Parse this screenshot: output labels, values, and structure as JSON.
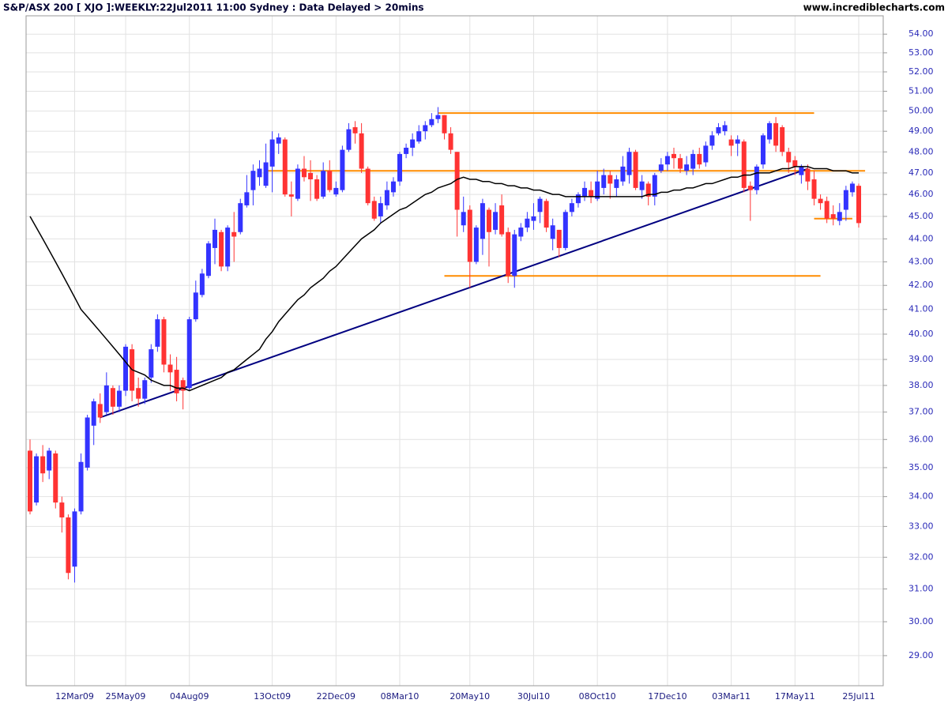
{
  "chart_data": {
    "type": "candlestick",
    "title": "S&P/ASX 200 [ XJO ]:WEEKLY:22Jul2011 11:00 Sydney : Data Delayed > 20mins",
    "source": "www.incrediblecharts.com",
    "log_scale": true,
    "grid": true,
    "up_color": "#3333ff",
    "down_color": "#ff3333",
    "ma_color": "#000000",
    "ylim": [
      28.14,
      55.0
    ],
    "yticks": [
      {
        "value": 29,
        "label": "29.00"
      },
      {
        "value": 30,
        "label": "30.00"
      },
      {
        "value": 31,
        "label": "31.00"
      },
      {
        "value": 32,
        "label": "32.00"
      },
      {
        "value": 33,
        "label": "33.00"
      },
      {
        "value": 34,
        "label": "34.00"
      },
      {
        "value": 35,
        "label": "35.00"
      },
      {
        "value": 36,
        "label": "36.00"
      },
      {
        "value": 37,
        "label": "37.00"
      },
      {
        "value": 38,
        "label": "38.00"
      },
      {
        "value": 39,
        "label": "39.00"
      },
      {
        "value": 40,
        "label": "40.00"
      },
      {
        "value": 41,
        "label": "41.00"
      },
      {
        "value": 42,
        "label": "42.00"
      },
      {
        "value": 43,
        "label": "43.00"
      },
      {
        "value": 44,
        "label": "44.00"
      },
      {
        "value": 45,
        "label": "45.00"
      },
      {
        "value": 46,
        "label": "46.00"
      },
      {
        "value": 47,
        "label": "47.00"
      },
      {
        "value": 48,
        "label": "48.00"
      },
      {
        "value": 49,
        "label": "49.00"
      },
      {
        "value": 50,
        "label": "50.00"
      },
      {
        "value": 51,
        "label": "51.00"
      },
      {
        "value": 52,
        "label": "52.00"
      },
      {
        "value": 53,
        "label": "53.00"
      },
      {
        "value": 54,
        "label": "54.00"
      }
    ],
    "categories": [
      null,
      null,
      null,
      null,
      null,
      null,
      null,
      "12Mar09",
      null,
      null,
      null,
      null,
      null,
      null,
      null,
      "25May09",
      null,
      null,
      null,
      null,
      null,
      null,
      null,
      null,
      null,
      "04Aug09",
      null,
      null,
      null,
      null,
      null,
      null,
      null,
      null,
      null,
      null,
      null,
      null,
      "13Oct09",
      null,
      null,
      null,
      null,
      null,
      null,
      null,
      null,
      null,
      "22Dec09",
      null,
      null,
      null,
      null,
      null,
      null,
      null,
      null,
      null,
      "08Mar10",
      null,
      null,
      null,
      null,
      null,
      null,
      null,
      null,
      null,
      null,
      "20May10",
      null,
      null,
      null,
      null,
      null,
      null,
      null,
      null,
      null,
      "30Jul10",
      null,
      null,
      null,
      null,
      null,
      null,
      null,
      null,
      null,
      "08Oct10",
      null,
      null,
      null,
      null,
      null,
      null,
      null,
      null,
      null,
      null,
      "17Dec10",
      null,
      null,
      null,
      null,
      null,
      null,
      null,
      null,
      null,
      "03Mar11",
      null,
      null,
      null,
      null,
      null,
      null,
      null,
      null,
      null,
      "17May11",
      null,
      null,
      null,
      null,
      null,
      null,
      null,
      null,
      null,
      "25Jul11"
    ],
    "open": [
      35.6,
      33.8,
      35.4,
      34.9,
      35.5,
      33.8,
      33.3,
      31.7,
      33.5,
      35.0,
      36.5,
      37.3,
      37.0,
      37.9,
      37.2,
      37.8,
      39.4,
      37.9,
      37.5,
      38.3,
      39.5,
      40.6,
      38.8,
      38.6,
      38.2,
      37.9,
      40.6,
      41.6,
      42.4,
      43.6,
      44.3,
      42.8,
      44.3,
      44.3,
      45.5,
      46.2,
      46.8,
      46.4,
      47.3,
      48.4,
      48.6,
      46.0,
      45.8,
      47.2,
      47.0,
      46.7,
      45.9,
      47.1,
      46.0,
      46.2,
      48.1,
      49.2,
      48.9,
      47.2,
      45.7,
      45.0,
      45.5,
      46.1,
      46.6,
      47.9,
      48.2,
      48.5,
      49.0,
      49.3,
      49.6,
      49.8,
      48.9,
      48.0,
      44.6,
      45.3,
      43.0,
      44.0,
      45.3,
      44.4,
      45.5,
      44.3,
      42.4,
      44.1,
      44.5,
      44.8,
      45.2,
      45.7,
      44.0,
      44.4,
      43.6,
      45.2,
      45.6,
      45.9,
      46.2,
      45.8,
      46.3,
      46.9,
      46.3,
      46.6,
      46.9,
      48.0,
      46.2,
      46.5,
      45.9,
      47.1,
      47.4,
      47.9,
      47.7,
      47.1,
      47.2,
      47.9,
      47.5,
      48.3,
      48.9,
      49.0,
      48.6,
      48.4,
      48.5,
      46.4,
      46.2,
      47.4,
      48.6,
      49.4,
      49.2,
      48.0,
      47.6,
      46.9,
      47.2,
      46.7,
      45.8,
      45.7,
      45.1,
      44.8,
      45.3,
      46.1,
      46.4
    ],
    "high": [
      36.0,
      35.5,
      35.8,
      35.7,
      35.6,
      34.0,
      33.4,
      33.6,
      35.5,
      36.9,
      37.5,
      37.7,
      38.5,
      38.0,
      38.0,
      39.6,
      39.6,
      38.3,
      38.3,
      39.6,
      40.8,
      40.7,
      39.2,
      39.1,
      38.3,
      40.7,
      42.2,
      42.7,
      43.9,
      44.9,
      44.4,
      44.6,
      45.2,
      45.8,
      46.9,
      47.4,
      47.6,
      48.4,
      49.0,
      48.9,
      48.7,
      46.6,
      47.4,
      47.8,
      47.6,
      46.9,
      47.5,
      47.6,
      46.6,
      48.3,
      49.4,
      49.5,
      49.4,
      47.3,
      45.9,
      45.9,
      46.6,
      46.8,
      48.0,
      48.4,
      48.9,
      49.3,
      49.5,
      49.9,
      50.2,
      49.8,
      49.2,
      48.0,
      45.9,
      45.5,
      44.6,
      45.8,
      45.4,
      45.6,
      46.0,
      44.5,
      44.4,
      44.7,
      45.2,
      45.6,
      45.9,
      45.8,
      44.9,
      44.4,
      45.3,
      45.8,
      46.1,
      46.6,
      46.6,
      47.1,
      47.2,
      47.1,
      46.9,
      47.8,
      48.2,
      48.1,
      46.9,
      46.6,
      47.0,
      47.7,
      48.0,
      48.2,
      47.9,
      47.8,
      48.1,
      48.2,
      48.5,
      49.0,
      49.4,
      49.5,
      48.8,
      48.8,
      48.6,
      46.6,
      47.4,
      48.9,
      49.5,
      49.7,
      49.3,
      48.2,
      47.8,
      47.4,
      47.4,
      47.1,
      46.0,
      45.9,
      45.5,
      45.6,
      46.4,
      46.6,
      46.5
    ],
    "low": [
      33.4,
      33.7,
      34.5,
      34.6,
      33.6,
      32.8,
      31.3,
      31.2,
      33.4,
      34.9,
      35.8,
      36.6,
      36.9,
      36.9,
      37.0,
      37.6,
      37.4,
      37.2,
      37.3,
      38.1,
      39.3,
      38.5,
      37.8,
      37.4,
      37.1,
      37.8,
      40.5,
      41.5,
      42.3,
      42.9,
      42.6,
      42.6,
      43.0,
      44.2,
      45.4,
      45.5,
      46.4,
      46.3,
      46.1,
      47.9,
      45.9,
      45.0,
      45.7,
      46.6,
      45.7,
      45.7,
      45.8,
      46.1,
      45.9,
      46.1,
      48.0,
      48.4,
      47.0,
      45.5,
      44.8,
      44.7,
      45.3,
      45.9,
      46.4,
      47.7,
      47.8,
      48.4,
      48.6,
      49.2,
      49.4,
      48.6,
      47.9,
      44.1,
      44.3,
      41.9,
      42.9,
      43.3,
      42.8,
      44.2,
      44.1,
      42.1,
      41.9,
      43.9,
      44.3,
      44.4,
      44.7,
      44.3,
      43.5,
      43.2,
      43.5,
      45.0,
      45.4,
      45.7,
      45.6,
      45.7,
      46.0,
      45.8,
      45.9,
      46.4,
      46.5,
      46.2,
      45.8,
      45.5,
      45.5,
      47.0,
      47.1,
      47.2,
      47.0,
      46.9,
      46.9,
      47.2,
      47.3,
      48.1,
      48.8,
      48.8,
      47.8,
      47.8,
      46.1,
      44.8,
      46.0,
      47.2,
      48.4,
      48.0,
      47.8,
      47.0,
      46.9,
      46.5,
      46.2,
      45.5,
      45.3,
      44.7,
      44.6,
      44.6,
      44.8,
      45.9,
      44.5
    ],
    "close": [
      33.5,
      35.4,
      34.8,
      35.6,
      33.8,
      33.3,
      31.5,
      33.5,
      35.2,
      36.8,
      37.4,
      36.8,
      38.0,
      37.2,
      37.8,
      39.5,
      37.8,
      37.5,
      38.2,
      39.4,
      40.6,
      38.8,
      38.5,
      37.7,
      37.8,
      40.6,
      41.7,
      42.5,
      43.8,
      44.4,
      42.8,
      44.5,
      44.1,
      45.6,
      46.1,
      47.1,
      47.2,
      47.5,
      48.6,
      48.7,
      46.0,
      45.9,
      47.2,
      46.8,
      46.7,
      45.8,
      47.1,
      46.2,
      46.3,
      48.1,
      49.1,
      48.9,
      47.2,
      45.6,
      44.9,
      45.6,
      46.2,
      46.6,
      47.9,
      48.2,
      48.6,
      49.0,
      49.3,
      49.6,
      49.8,
      48.9,
      48.1,
      45.3,
      45.2,
      43.0,
      44.5,
      45.6,
      44.3,
      45.2,
      44.2,
      42.4,
      44.2,
      44.5,
      44.9,
      45.0,
      45.8,
      44.5,
      44.6,
      43.6,
      45.2,
      45.6,
      46.0,
      46.3,
      45.9,
      46.6,
      46.9,
      46.5,
      46.7,
      47.3,
      48.0,
      46.3,
      46.6,
      45.9,
      46.9,
      47.4,
      47.8,
      47.7,
      47.2,
      47.4,
      47.9,
      47.4,
      48.3,
      48.8,
      49.2,
      49.3,
      48.3,
      48.6,
      46.3,
      46.2,
      47.3,
      48.8,
      49.4,
      48.3,
      48.0,
      47.5,
      47.3,
      47.3,
      46.6,
      45.8,
      45.6,
      44.9,
      44.9,
      45.2,
      46.2,
      46.5,
      44.7
    ],
    "ma": [
      45.0,
      44.5,
      44.0,
      43.5,
      43.0,
      42.5,
      42.0,
      41.5,
      41.0,
      40.7,
      40.4,
      40.1,
      39.8,
      39.5,
      39.2,
      38.9,
      38.6,
      38.5,
      38.4,
      38.2,
      38.1,
      38.0,
      38.0,
      37.9,
      37.9,
      37.8,
      37.9,
      38.0,
      38.1,
      38.2,
      38.3,
      38.5,
      38.6,
      38.8,
      39.0,
      39.2,
      39.4,
      39.8,
      40.1,
      40.5,
      40.8,
      41.1,
      41.4,
      41.6,
      41.9,
      42.1,
      42.3,
      42.6,
      42.8,
      43.1,
      43.4,
      43.7,
      44.0,
      44.2,
      44.4,
      44.7,
      44.9,
      45.1,
      45.3,
      45.4,
      45.6,
      45.8,
      46.0,
      46.1,
      46.3,
      46.4,
      46.5,
      46.7,
      46.8,
      46.7,
      46.7,
      46.6,
      46.6,
      46.5,
      46.5,
      46.4,
      46.4,
      46.3,
      46.3,
      46.2,
      46.2,
      46.1,
      46.0,
      46.0,
      45.9,
      45.9,
      45.9,
      45.9,
      45.9,
      45.9,
      45.9,
      45.9,
      45.9,
      45.9,
      45.9,
      45.9,
      45.9,
      46.0,
      46.0,
      46.1,
      46.1,
      46.2,
      46.2,
      46.3,
      46.3,
      46.4,
      46.5,
      46.5,
      46.6,
      46.7,
      46.8,
      46.8,
      46.9,
      46.9,
      47.0,
      47.0,
      47.0,
      47.1,
      47.2,
      47.2,
      47.3,
      47.3,
      47.3,
      47.2,
      47.2,
      47.2,
      47.1,
      47.1,
      47.1,
      47.0,
      47.0
    ],
    "levels": [
      {
        "value": 49.9,
        "start": 64,
        "end": 123,
        "color": "#ff8c00"
      },
      {
        "value": 47.1,
        "start": 37,
        "end": 131,
        "color": "#ff8c00"
      },
      {
        "value": 42.4,
        "start": 65,
        "end": 124,
        "color": "#ff8c00"
      },
      {
        "value": 44.9,
        "start": 123,
        "end": 129,
        "color": "#ff8c00"
      }
    ],
    "trendline": {
      "start": 11,
      "end": 122,
      "from": 36.8,
      "to": 47.2,
      "color": "#000080"
    }
  }
}
